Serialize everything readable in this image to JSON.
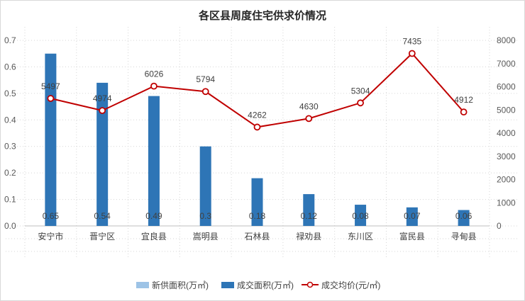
{
  "chart_data": {
    "type": "bar",
    "title": "各区县周度住宅供求价情况",
    "categories": [
      "安宁市",
      "晋宁区",
      "宜良县",
      "嵩明县",
      "石林县",
      "禄劝县",
      "东川区",
      "富民县",
      "寻甸县"
    ],
    "series": [
      {
        "name": "新供面积(万㎡)",
        "type": "bar",
        "axis": "left",
        "color": "#9dc3e6",
        "values": [
          0,
          0,
          0,
          0,
          0,
          0,
          0,
          0,
          0
        ]
      },
      {
        "name": "成交面积(万㎡)",
        "type": "bar",
        "axis": "left",
        "color": "#2e75b6",
        "values": [
          0.65,
          0.54,
          0.49,
          0.3,
          0.18,
          0.12,
          0.08,
          0.07,
          0.06
        ],
        "labels": [
          "0.65",
          "0.54",
          "0.49",
          "0.3",
          "0.18",
          "0.12",
          "0.08",
          "0.07",
          "0.06"
        ]
      },
      {
        "name": "成交均价(元/㎡)",
        "type": "line",
        "axis": "right",
        "color": "#c00000",
        "values": [
          5497,
          4974,
          6026,
          5794,
          4262,
          4630,
          5304,
          7435,
          4912
        ],
        "labels": [
          "5497",
          "4974",
          "6026",
          "5794",
          "4262",
          "4630",
          "5304",
          "7435",
          "4912"
        ]
      }
    ],
    "y_left": {
      "min": 0,
      "max": 0.7,
      "ticks": [
        "0.0",
        "0.1",
        "0.2",
        "0.3",
        "0.4",
        "0.5",
        "0.6",
        "0.7"
      ]
    },
    "y_right": {
      "min": 0,
      "max": 8000,
      "ticks": [
        "0",
        "1000",
        "2000",
        "3000",
        "4000",
        "5000",
        "6000",
        "7000",
        "8000"
      ]
    },
    "grid": true,
    "legend": "bottom"
  }
}
